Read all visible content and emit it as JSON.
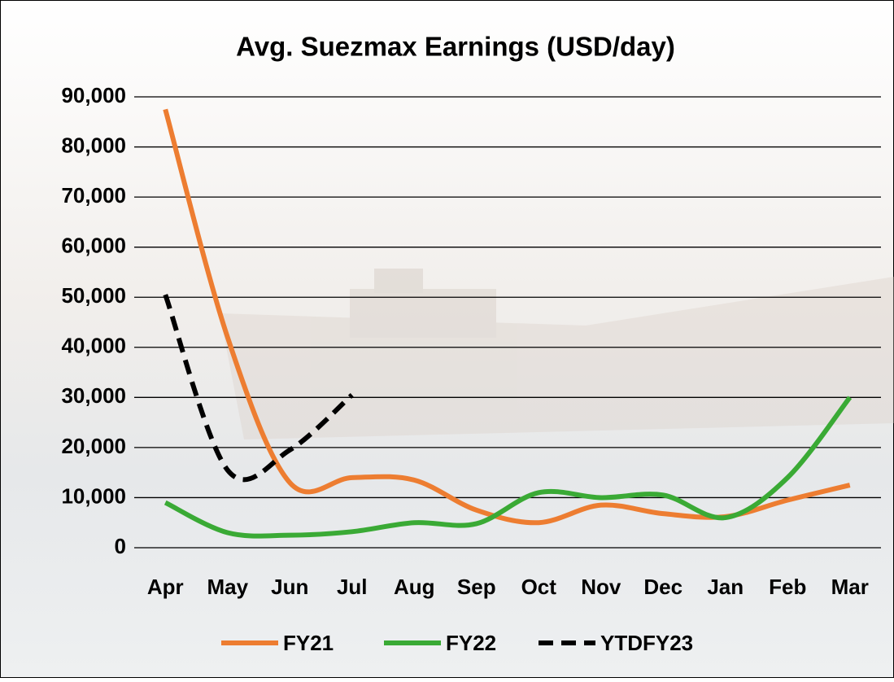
{
  "chart_data": {
    "type": "line",
    "title": "Avg. Suezmax Earnings (USD/day)",
    "categories": [
      "Apr",
      "May",
      "Jun",
      "Jul",
      "Aug",
      "Sep",
      "Oct",
      "Nov",
      "Dec",
      "Jan",
      "Feb",
      "Mar"
    ],
    "series": [
      {
        "name": "FY21",
        "color": "#ed7d31",
        "dash": false,
        "values": [
          87500,
          42000,
          13000,
          14000,
          13500,
          7500,
          5000,
          8500,
          6800,
          6200,
          9500,
          12500
        ]
      },
      {
        "name": "FY22",
        "color": "#3aaa35",
        "dash": false,
        "values": [
          9000,
          3000,
          2500,
          3200,
          5000,
          4800,
          11000,
          10000,
          10500,
          6000,
          14000,
          30000
        ]
      },
      {
        "name": "YTDFY23",
        "color": "#000000",
        "dash": true,
        "values": [
          50500,
          15500,
          19500,
          30500,
          null,
          null,
          null,
          null,
          null,
          null,
          null,
          null
        ]
      }
    ],
    "ylim": [
      0,
      90000
    ],
    "yticks": [
      0,
      {
        "value": 10000,
        "label": "10,000"
      },
      {
        "value": 20000,
        "label": "20,000"
      },
      {
        "value": 30000,
        "label": "30,000"
      },
      {
        "value": 40000,
        "label": "40,000"
      },
      {
        "value": 50000,
        "label": "50,000"
      },
      {
        "value": 60000,
        "label": "60,000"
      },
      {
        "value": 70000,
        "label": "70,000"
      },
      {
        "value": 80000,
        "label": "80,000"
      },
      {
        "value": 90000,
        "label": "90,000"
      }
    ],
    "grid": true,
    "legend": "bottom"
  }
}
